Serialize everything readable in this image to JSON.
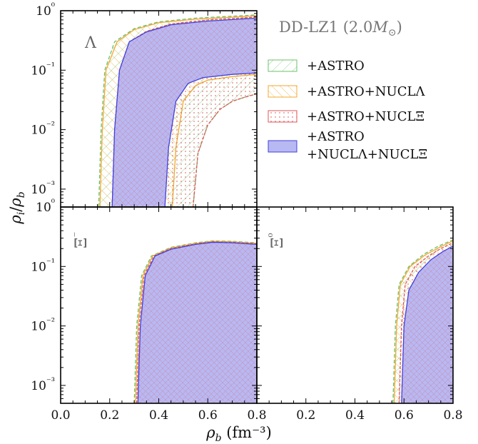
{
  "figure": {
    "title": "DD-LZ1 (2.0M⊙)",
    "xlabel": "ρb (fm⁻³)",
    "ylabel": "ρi/ρb"
  },
  "colors": {
    "ASTRO": "#6cc06c",
    "ASTRO_NUCL_Lambda": "#f0a830",
    "ASTRO_NUCL_Xi": "#e05555",
    "ASTRO_NUCL_Lambda_NUCL_Xi": "#4040e0",
    "fill_Lambda_Xi": "#b8b8f2"
  },
  "chart_data": [
    {
      "type": "area",
      "panel": "Lambda",
      "label": "Λ",
      "xlim": [
        0.0,
        0.8
      ],
      "ylim": [
        0.0005,
        1.0
      ],
      "yscale": "log",
      "xticks": [],
      "yticks": [
        "10⁰",
        "10⁻¹",
        "10⁻²",
        "10⁻³"
      ],
      "series": [
        {
          "name": "+ASTRO",
          "lower": [
            [
              0.54,
              0.0005
            ],
            [
              0.56,
              0.004
            ],
            [
              0.6,
              0.012
            ],
            [
              0.65,
              0.022
            ],
            [
              0.7,
              0.03
            ],
            [
              0.75,
              0.035
            ],
            [
              0.8,
              0.04
            ]
          ],
          "upper": [
            [
              0.155,
              0.0005
            ],
            [
              0.165,
              0.01
            ],
            [
              0.18,
              0.1
            ],
            [
              0.22,
              0.3
            ],
            [
              0.3,
              0.5
            ],
            [
              0.4,
              0.65
            ],
            [
              0.55,
              0.75
            ],
            [
              0.8,
              0.85
            ]
          ]
        },
        {
          "name": "+ASTRO+NUCLΛ",
          "lower": [
            [
              0.455,
              0.0005
            ],
            [
              0.47,
              0.005
            ],
            [
              0.5,
              0.03
            ],
            [
              0.55,
              0.055
            ],
            [
              0.6,
              0.068
            ],
            [
              0.7,
              0.078
            ],
            [
              0.8,
              0.085
            ]
          ],
          "upper": [
            [
              0.16,
              0.0005
            ],
            [
              0.17,
              0.01
            ],
            [
              0.185,
              0.1
            ],
            [
              0.23,
              0.3
            ],
            [
              0.3,
              0.48
            ],
            [
              0.4,
              0.63
            ],
            [
              0.55,
              0.72
            ],
            [
              0.8,
              0.82
            ]
          ]
        },
        {
          "name": "+ASTRO+NUCLΞ",
          "lower": [
            [
              0.54,
              0.0005
            ],
            [
              0.56,
              0.004
            ],
            [
              0.6,
              0.012
            ],
            [
              0.65,
              0.022
            ],
            [
              0.7,
              0.03
            ],
            [
              0.75,
              0.035
            ],
            [
              0.8,
              0.04
            ]
          ],
          "upper": [
            [
              0.21,
              0.0005
            ],
            [
              0.22,
              0.01
            ],
            [
              0.24,
              0.1
            ],
            [
              0.28,
              0.3
            ],
            [
              0.35,
              0.45
            ],
            [
              0.45,
              0.6
            ],
            [
              0.6,
              0.7
            ],
            [
              0.8,
              0.78
            ]
          ]
        },
        {
          "name": "+ASTRO +NUCLΛ+NUCLΞ",
          "lower": [
            [
              0.425,
              0.0005
            ],
            [
              0.44,
              0.005
            ],
            [
              0.47,
              0.03
            ],
            [
              0.52,
              0.06
            ],
            [
              0.58,
              0.075
            ],
            [
              0.7,
              0.085
            ],
            [
              0.8,
              0.09
            ]
          ],
          "upper": [
            [
              0.21,
              0.0005
            ],
            [
              0.22,
              0.01
            ],
            [
              0.24,
              0.1
            ],
            [
              0.28,
              0.3
            ],
            [
              0.35,
              0.44
            ],
            [
              0.45,
              0.58
            ],
            [
              0.6,
              0.67
            ],
            [
              0.8,
              0.75
            ]
          ]
        }
      ]
    },
    {
      "type": "area",
      "panel": "Xi-",
      "label": "Ξ⁻",
      "xlim": [
        0.0,
        0.8
      ],
      "ylim": [
        0.0005,
        1.0
      ],
      "yscale": "log",
      "xticks": [
        "0.0",
        "0.2",
        "0.4",
        "0.6",
        "0.8"
      ],
      "yticks": [
        "10⁰",
        "10⁻¹",
        "10⁻²",
        "10⁻³"
      ],
      "series": [
        {
          "name": "+ASTRO",
          "upper": [
            [
              0.3,
              0.0005
            ],
            [
              0.31,
              0.01
            ],
            [
              0.33,
              0.07
            ],
            [
              0.37,
              0.15
            ],
            [
              0.45,
              0.21
            ],
            [
              0.55,
              0.25
            ],
            [
              0.62,
              0.27
            ],
            [
              0.7,
              0.265
            ],
            [
              0.8,
              0.25
            ]
          ]
        },
        {
          "name": "+ASTRO+NUCLΛ",
          "upper": [
            [
              0.305,
              0.0005
            ],
            [
              0.315,
              0.01
            ],
            [
              0.335,
              0.07
            ],
            [
              0.375,
              0.15
            ],
            [
              0.45,
              0.205
            ],
            [
              0.55,
              0.245
            ],
            [
              0.62,
              0.265
            ],
            [
              0.7,
              0.26
            ],
            [
              0.8,
              0.245
            ]
          ]
        },
        {
          "name": "+ASTRO+NUCLΞ",
          "upper": [
            [
              0.31,
              0.0005
            ],
            [
              0.32,
              0.01
            ],
            [
              0.34,
              0.07
            ],
            [
              0.38,
              0.15
            ],
            [
              0.45,
              0.2
            ],
            [
              0.55,
              0.24
            ],
            [
              0.62,
              0.26
            ],
            [
              0.7,
              0.255
            ],
            [
              0.8,
              0.24
            ]
          ]
        },
        {
          "name": "+ASTRO +NUCLΛ+NUCLΞ",
          "upper": [
            [
              0.315,
              0.0005
            ],
            [
              0.325,
              0.01
            ],
            [
              0.345,
              0.07
            ],
            [
              0.385,
              0.15
            ],
            [
              0.45,
              0.195
            ],
            [
              0.55,
              0.235
            ],
            [
              0.62,
              0.255
            ],
            [
              0.7,
              0.25
            ],
            [
              0.8,
              0.235
            ]
          ]
        }
      ]
    },
    {
      "type": "area",
      "panel": "Xi0",
      "label": "Ξ⁰",
      "xlim": [
        0.0,
        0.8
      ],
      "ylim": [
        0.0005,
        1.0
      ],
      "yscale": "log",
      "xticks": [
        "0.2",
        "0.4",
        "0.6",
        "0.8"
      ],
      "yticks": [],
      "series": [
        {
          "name": "+ASTRO",
          "upper": [
            [
              0.555,
              0.0005
            ],
            [
              0.565,
              0.01
            ],
            [
              0.58,
              0.05
            ],
            [
              0.62,
              0.1
            ],
            [
              0.68,
              0.16
            ],
            [
              0.74,
              0.22
            ],
            [
              0.8,
              0.28
            ]
          ]
        },
        {
          "name": "+ASTRO+NUCLΛ",
          "upper": [
            [
              0.56,
              0.0005
            ],
            [
              0.57,
              0.01
            ],
            [
              0.585,
              0.05
            ],
            [
              0.625,
              0.1
            ],
            [
              0.685,
              0.155
            ],
            [
              0.745,
              0.21
            ],
            [
              0.8,
              0.27
            ]
          ]
        },
        {
          "name": "+ASTRO+NUCLΞ",
          "upper": [
            [
              0.58,
              0.0005
            ],
            [
              0.59,
              0.01
            ],
            [
              0.605,
              0.05
            ],
            [
              0.645,
              0.1
            ],
            [
              0.7,
              0.15
            ],
            [
              0.75,
              0.2
            ],
            [
              0.8,
              0.25
            ]
          ]
        },
        {
          "name": "+ASTRO +NUCLΛ+NUCLΞ",
          "upper": [
            [
              0.59,
              0.0005
            ],
            [
              0.6,
              0.01
            ],
            [
              0.62,
              0.04
            ],
            [
              0.66,
              0.08
            ],
            [
              0.71,
              0.13
            ],
            [
              0.76,
              0.18
            ],
            [
              0.8,
              0.22
            ]
          ]
        }
      ]
    }
  ],
  "legend": {
    "placement": "top-right",
    "items": [
      {
        "lines": [
          "+ASTRO"
        ],
        "style": "hatch-green"
      },
      {
        "lines": [
          "+ASTRO+NUCLΛ"
        ],
        "style": "hatch-orange"
      },
      {
        "lines": [
          "+ASTRO+NUCLΞ"
        ],
        "style": "dots-red"
      },
      {
        "lines": [
          "+ASTRO",
          "+NUCLΛ+NUCLΞ"
        ],
        "style": "fill-blue"
      }
    ]
  }
}
